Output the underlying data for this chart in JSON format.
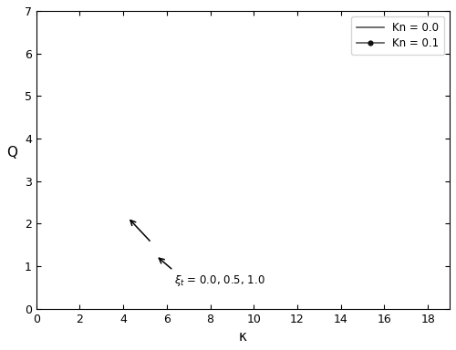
{
  "xlabel": "κ",
  "ylabel": "Q",
  "xlim": [
    0,
    19
  ],
  "ylim": [
    0,
    7
  ],
  "xticks": [
    0,
    2,
    4,
    6,
    8,
    10,
    12,
    14,
    16,
    18
  ],
  "yticks": [
    0,
    1,
    2,
    3,
    4,
    5,
    6,
    7
  ],
  "legend_entries": [
    "Kn = 0.0",
    "Kn = 0.1"
  ],
  "line_color": "#555555",
  "dot_color": "#111111",
  "figsize": [
    5.0,
    3.84
  ],
  "dpi": 100,
  "xi_t_values": [
    0.0,
    0.5,
    1.0
  ],
  "Kn_values": [
    0.0,
    0.1
  ]
}
